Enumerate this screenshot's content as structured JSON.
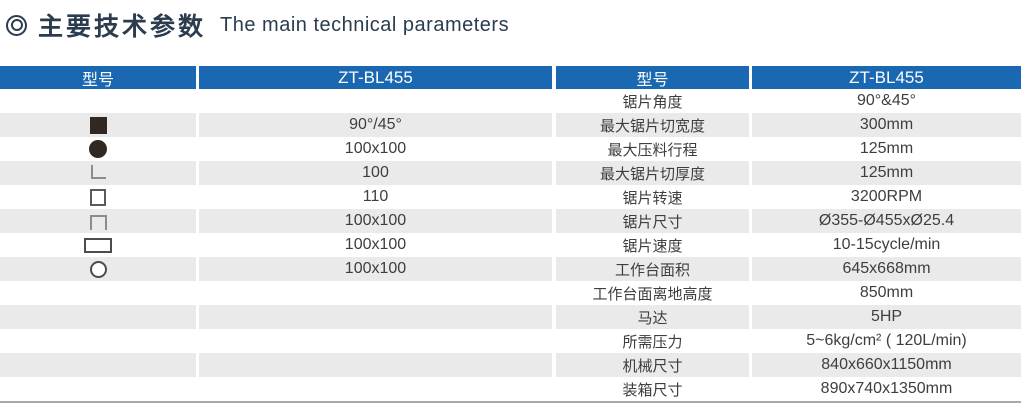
{
  "title": {
    "zh": "主要技术参数",
    "en": "The main technical parameters"
  },
  "colors": {
    "header_blue": "#1a68b2",
    "row_gray": "#eaeaea",
    "title_color": "#2b3c4f",
    "text_color": "#3e3e3e",
    "shape_dark": "#322822",
    "bottom_border": "#a9a9a9"
  },
  "table": {
    "headers": [
      {
        "label": "型号"
      },
      {
        "label": "ZT-BL455"
      },
      {
        "label": "型号"
      },
      {
        "label": "ZT-BL455"
      }
    ],
    "rows": [
      {
        "icon": "",
        "left_value": "",
        "param": "锯片角度",
        "value": "90°&45°"
      },
      {
        "icon": "square-filled",
        "left_value": "90°/45°",
        "param": "最大锯片切宽度",
        "value": "300mm"
      },
      {
        "icon": "circle-filled",
        "left_value": "100x100",
        "param": "最大压料行程",
        "value": "125mm"
      },
      {
        "icon": "angle",
        "left_value": "100",
        "param": "最大锯片切厚度",
        "value": "125mm"
      },
      {
        "icon": "square-outline",
        "left_value": "110",
        "param": "锯片转速",
        "value": "3200RPM"
      },
      {
        "icon": "channel",
        "left_value": "100x100",
        "param": "锯片尺寸",
        "value": "Ø355-Ø455xØ25.4"
      },
      {
        "icon": "rect-outline",
        "left_value": "100x100",
        "param": "锯片速度",
        "value": "10-15cycle/min"
      },
      {
        "icon": "circle-outline",
        "left_value": "100x100",
        "param": "工作台面积",
        "value": "645x668mm"
      },
      {
        "icon": "",
        "left_value": "",
        "param": "工作台面离地高度",
        "value": "850mm"
      },
      {
        "icon": "",
        "left_value": "",
        "param": "马达",
        "value": "5HP"
      },
      {
        "icon": "",
        "left_value": "",
        "param": "所需压力",
        "value": "5~6kg/cm² ( 120L/min)"
      },
      {
        "icon": "",
        "left_value": "",
        "param": "机械尺寸",
        "value": "840x660x1150mm"
      },
      {
        "icon": "",
        "left_value": "",
        "param": "装箱尺寸",
        "value": "890x740x1350mm"
      }
    ]
  }
}
